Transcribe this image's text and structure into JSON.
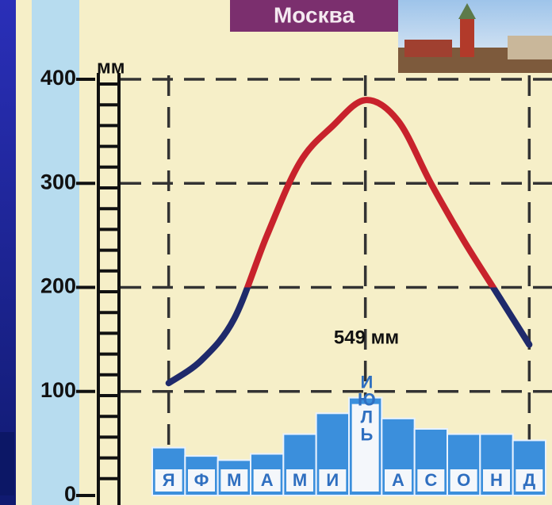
{
  "chart_data": {
    "type": "bar_line",
    "title": "Москва",
    "y_label": "мм",
    "annotation": "549 мм",
    "categories": [
      "Я",
      "Ф",
      "М",
      "А",
      "М",
      "И",
      "ИЮЛЬ",
      "А",
      "С",
      "О",
      "Н",
      "Д"
    ],
    "bars": {
      "color": "#3b8fdc",
      "values": [
        46,
        38,
        34,
        40,
        59,
        79,
        94,
        74,
        64,
        59,
        59,
        53
      ]
    },
    "line": {
      "color": "#1f2a6b",
      "highlight_color": "#c8222c",
      "values": [
        108,
        130,
        170,
        250,
        320,
        355,
        380,
        360,
        300,
        245,
        195,
        145
      ]
    },
    "ylim": [
      0,
      400
    ],
    "yticks": [
      0,
      100,
      200,
      300,
      400
    ],
    "grid": true
  }
}
